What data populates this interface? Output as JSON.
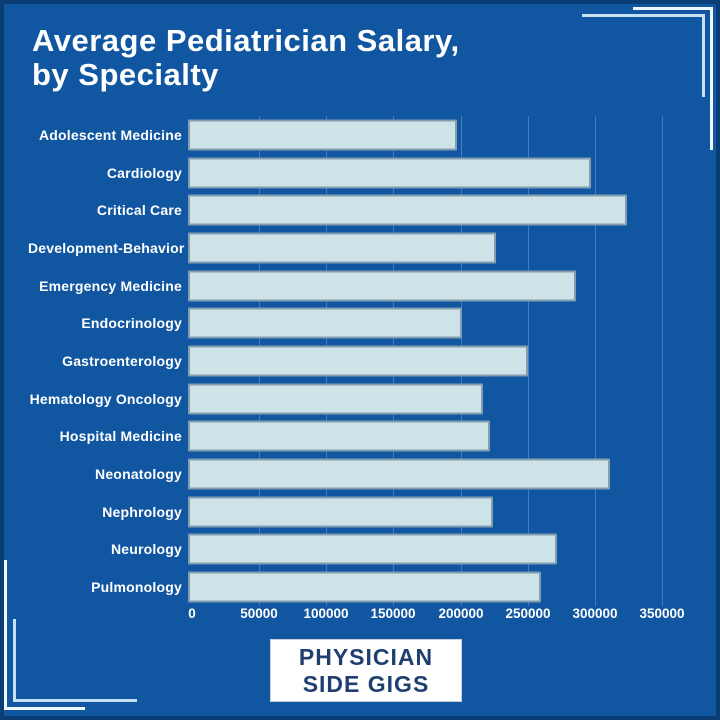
{
  "page": {
    "background_color": "#1156A1",
    "frame_line_outer_color": "#EEF8FD",
    "frame_line_inner_color": "#C6E1F2",
    "text_color": "#FFFFFF"
  },
  "title": {
    "line1": "Average Pediatrician Salary,",
    "line2": "by Specialty"
  },
  "badge": {
    "line1": "PHYSICIAN",
    "line2": "SIDE GIGS",
    "background_color": "#FFFFFF",
    "text_color": "#1E3F70"
  },
  "chart_data": {
    "type": "bar",
    "orientation": "horizontal",
    "title": "Average Pediatrician Salary, by Specialty",
    "xlabel": "",
    "ylabel": "",
    "categories": [
      "Adolescent Medicine",
      "Cardiology",
      "Critical Care",
      "Development-Behavior",
      "Emergency Medicine",
      "Endocrinology",
      "Gastroenterology",
      "Hematology Oncology",
      "Hospital Medicine",
      "Neonatology",
      "Nephrology",
      "Neurology",
      "Pulmonology"
    ],
    "values": [
      200000,
      300000,
      327000,
      229000,
      289000,
      204000,
      253000,
      220000,
      225000,
      314000,
      227000,
      275000,
      263000
    ],
    "xlim": [
      0,
      350000
    ],
    "x_ticks": [
      0,
      50000,
      100000,
      150000,
      200000,
      250000,
      300000,
      350000
    ],
    "x_tick_labels": [
      "0",
      "50000",
      "100000",
      "150000",
      "200000",
      "250000",
      "300000",
      "350000"
    ],
    "bar_color": "#CDE3E8",
    "grid": true,
    "legend": "none"
  }
}
